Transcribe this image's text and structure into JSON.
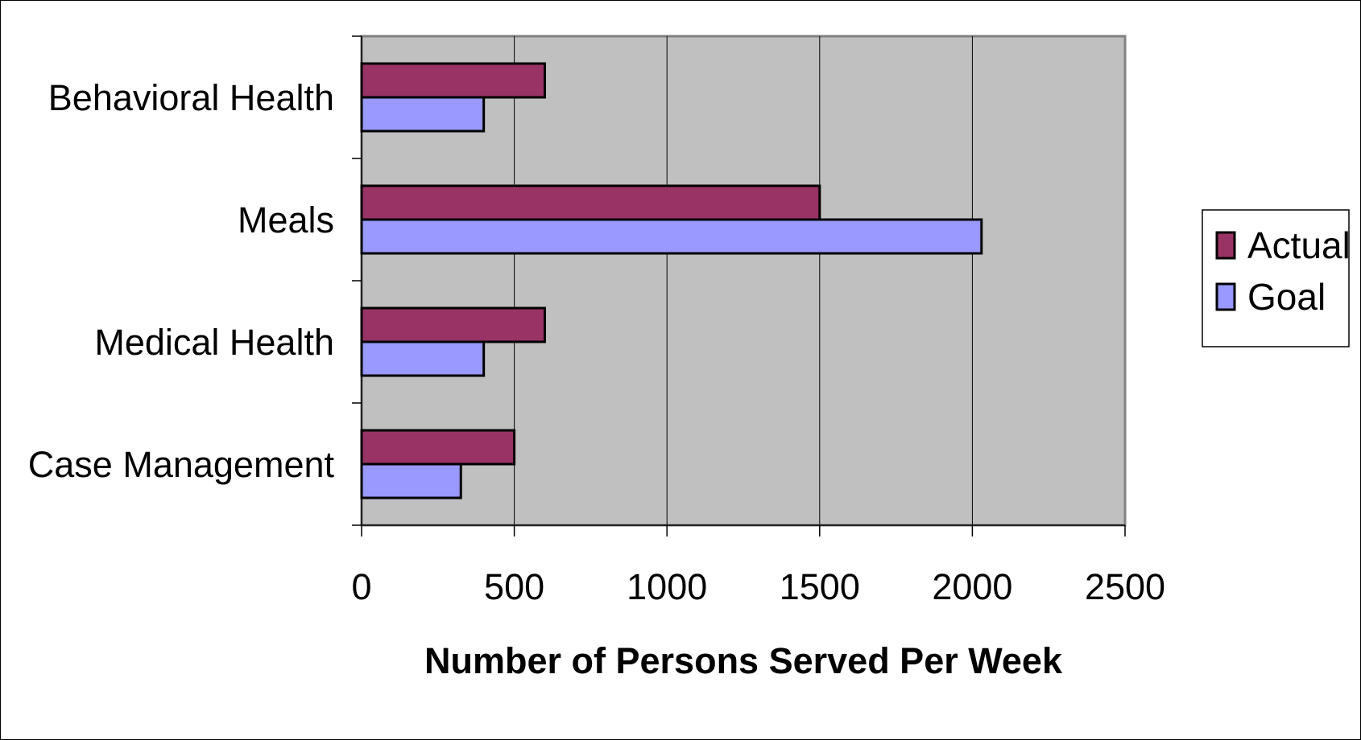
{
  "chart_data": {
    "type": "bar",
    "orientation": "horizontal",
    "categories": [
      "Behavioral Health",
      "Meals",
      "Medical Health",
      "Case Management"
    ],
    "series": [
      {
        "name": "Actual",
        "values": [
          600,
          1500,
          600,
          500
        ],
        "color": "#993366"
      },
      {
        "name": "Goal",
        "values": [
          400,
          2030,
          400,
          325
        ],
        "color": "#9999FF"
      }
    ],
    "xlabel": "Number of Persons Served Per Week",
    "ylabel": "",
    "xlim": [
      0,
      2500
    ],
    "xticks": [
      "0",
      "500",
      "1000",
      "1500",
      "2000",
      "2500"
    ],
    "grid": "vertical",
    "legend": "right",
    "plot_background": "#C0C0C0"
  }
}
